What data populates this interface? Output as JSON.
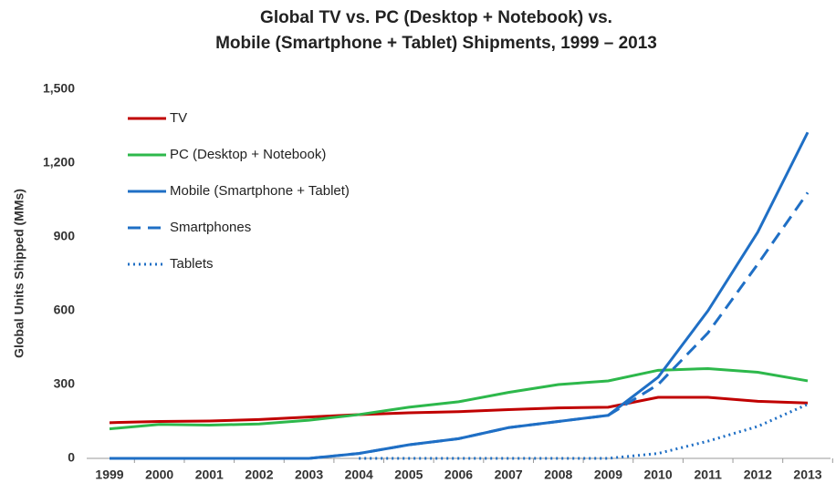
{
  "chart_data": {
    "type": "line",
    "title": [
      "Global TV vs. PC (Desktop + Notebook) vs.",
      "Mobile (Smartphone + Tablet) Shipments, 1999 – 2013"
    ],
    "y_label": "Global Units Shipped (MMs)",
    "categories": [
      "1999",
      "2000",
      "2001",
      "2002",
      "2003",
      "2004",
      "2005",
      "2006",
      "2007",
      "2008",
      "2009",
      "2010",
      "2011",
      "2012",
      "2013"
    ],
    "series": [
      {
        "name": "TV",
        "color": "#c00000",
        "dash": "solid",
        "values": [
          145,
          150,
          152,
          158,
          168,
          178,
          185,
          190,
          198,
          205,
          208,
          248,
          248,
          232,
          225
        ]
      },
      {
        "name": "PC (Desktop + Notebook)",
        "color": "#2db84b",
        "dash": "solid",
        "values": [
          120,
          138,
          135,
          140,
          155,
          178,
          208,
          230,
          268,
          300,
          315,
          358,
          365,
          350,
          315
        ]
      },
      {
        "name": "Mobile (Smartphone + Tablet)",
        "color": "#1f6fc5",
        "dash": "solid",
        "values": [
          0,
          0,
          0,
          0,
          0,
          20,
          55,
          80,
          125,
          150,
          175,
          330,
          600,
          920,
          1325
        ]
      },
      {
        "name": "Smartphones",
        "color": "#1f6fc5",
        "dash": "dashed",
        "values": [
          0,
          0,
          0,
          0,
          0,
          20,
          55,
          80,
          125,
          150,
          175,
          300,
          510,
          790,
          1080
        ]
      },
      {
        "name": "Tablets",
        "color": "#1f6fc5",
        "dash": "dotted",
        "values": [
          null,
          null,
          null,
          null,
          null,
          0,
          0,
          0,
          0,
          0,
          0,
          20,
          70,
          130,
          220
        ]
      }
    ],
    "ylim": [
      0,
      1500
    ],
    "yticks": [
      0,
      300,
      600,
      900,
      {
        "value": 1200,
        "label": "1,200"
      },
      {
        "value": 1500,
        "label": "1,500"
      }
    ],
    "grid": false,
    "legend": "top-left"
  }
}
